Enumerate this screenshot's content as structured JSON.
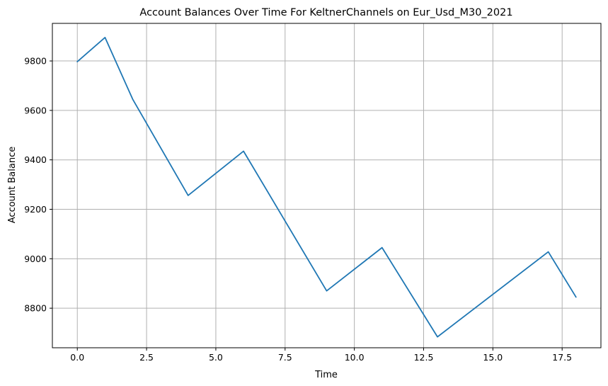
{
  "chart_data": {
    "type": "line",
    "title": "Account Balances Over Time For KeltnerChannels on Eur_Usd_M30_2021",
    "xlabel": "Time",
    "ylabel": "Account Balance",
    "xlim": [
      -0.9,
      18.9
    ],
    "ylim": [
      8640,
      9952
    ],
    "xticks": [
      0.0,
      2.5,
      5.0,
      7.5,
      10.0,
      12.5,
      15.0,
      17.5
    ],
    "xtick_labels": [
      "0.0",
      "2.5",
      "5.0",
      "7.5",
      "10.0",
      "12.5",
      "15.0",
      "17.5"
    ],
    "yticks": [
      8800,
      9000,
      9200,
      9400,
      9600,
      9800
    ],
    "ytick_labels": [
      "8800",
      "9000",
      "9200",
      "9400",
      "9600",
      "9800"
    ],
    "grid": true,
    "x": [
      0,
      1,
      2,
      4,
      6,
      9,
      11,
      13,
      17,
      18
    ],
    "series": [
      {
        "color": "#1f77b4",
        "values": [
          9797,
          9895,
          9645,
          9256,
          9435,
          8870,
          9045,
          8684,
          9028,
          8845
        ]
      }
    ]
  }
}
